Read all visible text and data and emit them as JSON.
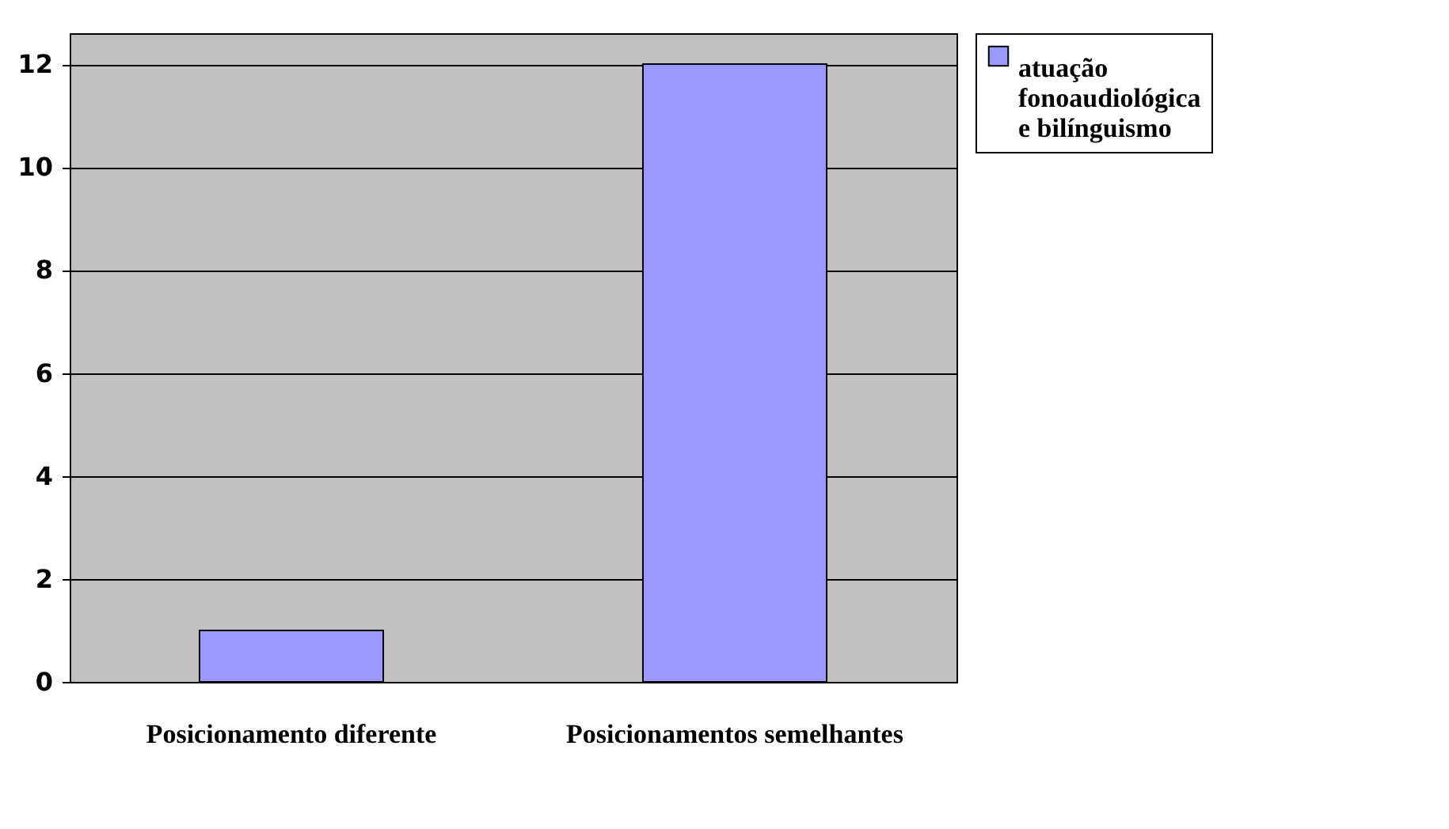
{
  "chart_data": {
    "type": "bar",
    "categories": [
      "Posicionamento diferente",
      "Posicionamentos semelhantes"
    ],
    "series": [
      {
        "name": "atuação fonoaudiológica e bilínguismo",
        "color": "#9999ff",
        "values": [
          1,
          12
        ]
      }
    ],
    "ylim": [
      0,
      12.6
    ],
    "yticks": [
      0,
      2,
      4,
      6,
      8,
      10,
      12
    ],
    "grid": "y",
    "legend": "right"
  }
}
